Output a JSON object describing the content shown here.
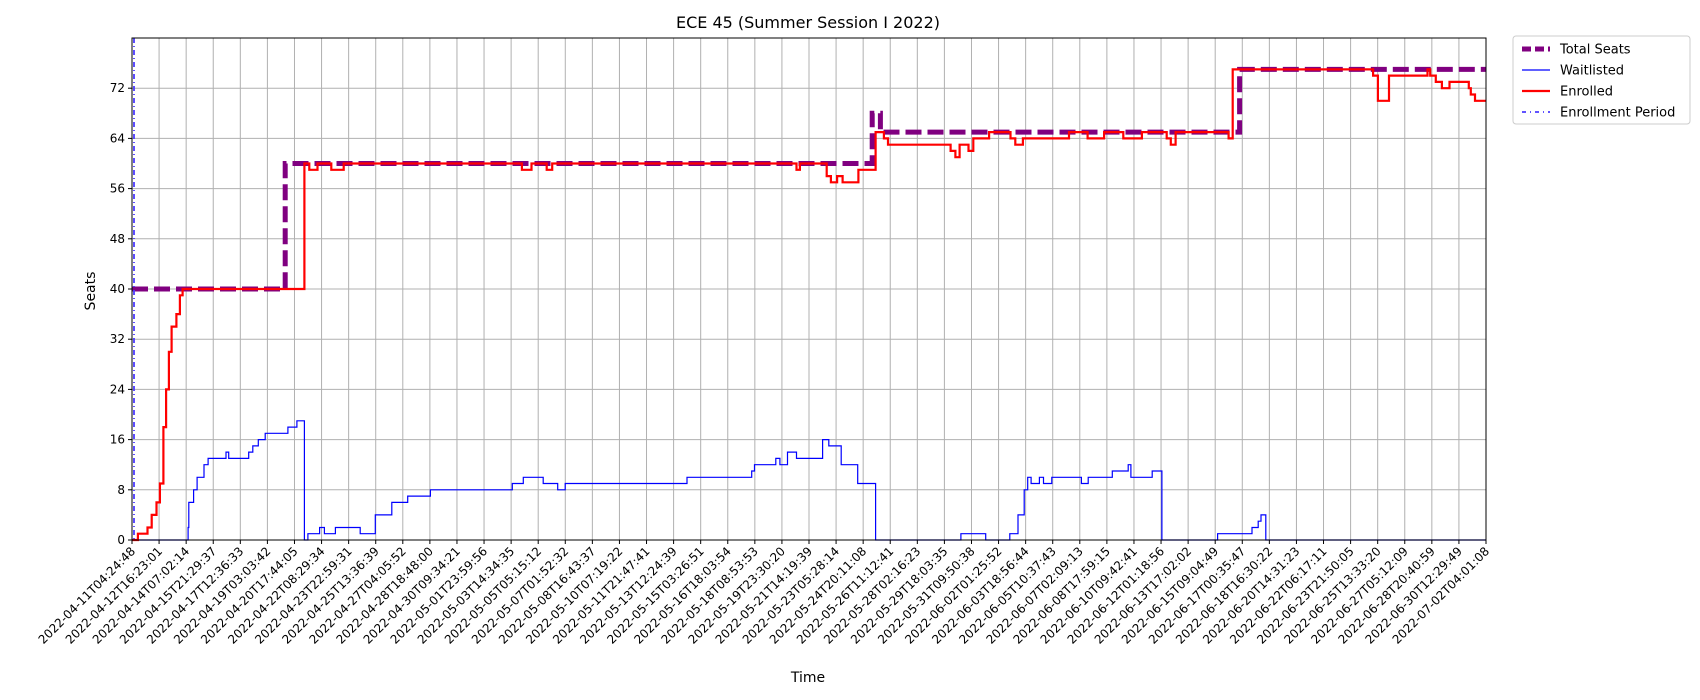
{
  "chart_data": {
    "type": "line",
    "title": "ECE 45 (Summer Session I 2022)",
    "xlabel": "Time",
    "ylabel": "Seats",
    "ylim": [
      0,
      80
    ],
    "xlim": [
      "2022-04-11T04:24:48",
      "2022-07-02T04:01:08"
    ],
    "yticks": [
      0,
      8,
      16,
      24,
      32,
      40,
      48,
      56,
      64,
      72
    ],
    "grid": true,
    "legend_position": "outside-top-right",
    "xtick_labels": [
      "2022-04-11T04:24:48",
      "2022-04-12T16:23:01",
      "2022-04-14T07:02:14",
      "2022-04-15T21:29:37",
      "2022-04-17T12:36:33",
      "2022-04-19T03:03:42",
      "2022-04-20T17:44:05",
      "2022-04-22T08:29:34",
      "2022-04-23T22:59:31",
      "2022-04-25T13:36:39",
      "2022-04-27T04:05:52",
      "2022-04-28T18:48:00",
      "2022-04-30T09:34:21",
      "2022-05-01T23:59:56",
      "2022-05-03T14:34:35",
      "2022-05-05T05:15:12",
      "2022-05-07T01:52:32",
      "2022-05-08T16:43:37",
      "2022-05-10T07:19:22",
      "2022-05-11T21:47:41",
      "2022-05-13T12:24:39",
      "2022-05-15T03:26:51",
      "2022-05-16T18:03:54",
      "2022-05-18T08:53:53",
      "2022-05-19T23:30:20",
      "2022-05-21T14:19:39",
      "2022-05-23T05:28:14",
      "2022-05-24T20:11:08",
      "2022-05-26T11:12:41",
      "2022-05-28T02:16:23",
      "2022-05-29T18:03:35",
      "2022-05-31T09:50:38",
      "2022-06-02T01:25:52",
      "2022-06-03T18:56:44",
      "2022-06-05T10:37:43",
      "2022-06-07T02:09:13",
      "2022-06-08T17:59:15",
      "2022-06-10T09:42:41",
      "2022-06-12T01:18:56",
      "2022-06-13T17:02:02",
      "2022-06-15T09:04:49",
      "2022-06-17T00:35:47",
      "2022-06-18T16:30:22",
      "2022-06-20T14:31:23",
      "2022-06-22T06:17:11",
      "2022-06-23T21:50:05",
      "2022-06-25T13:33:20",
      "2022-06-27T05:12:09",
      "2022-06-28T20:40:59",
      "2022-06-30T12:29:49",
      "2022-07-02T04:01:08"
    ],
    "series": [
      {
        "name": "Total Seats",
        "color": "#800080",
        "style": "dashed-thick",
        "step": true,
        "points": [
          [
            "2022-04-11T04:24:48",
            40
          ],
          [
            "2022-04-20T11:00:00",
            40
          ],
          [
            "2022-04-20T11:00:00",
            60
          ],
          [
            "2022-05-26T00:00:00",
            60
          ],
          [
            "2022-05-26T00:00:00",
            68
          ],
          [
            "2022-05-26T12:00:00",
            68
          ],
          [
            "2022-05-26T12:00:00",
            65
          ],
          [
            "2022-06-17T06:00:00",
            65
          ],
          [
            "2022-06-17T06:00:00",
            75
          ],
          [
            "2022-07-02T04:01:08",
            75
          ]
        ]
      },
      {
        "name": "Waitlisted",
        "color": "#0000ff",
        "style": "solid-thin",
        "step": true,
        "points": [
          [
            "2022-04-11T04:24:48",
            0
          ],
          [
            "2022-04-14T13:00:00",
            0
          ],
          [
            "2022-04-14T14:00:00",
            2
          ],
          [
            "2022-04-14T15:00:00",
            6
          ],
          [
            "2022-04-14T22:00:00",
            8
          ],
          [
            "2022-04-15T03:00:00",
            10
          ],
          [
            "2022-04-15T13:00:00",
            12
          ],
          [
            "2022-04-15T19:00:00",
            13
          ],
          [
            "2022-04-16T21:00:00",
            14
          ],
          [
            "2022-04-17T01:00:00",
            13
          ],
          [
            "2022-04-18T06:00:00",
            14
          ],
          [
            "2022-04-18T12:00:00",
            15
          ],
          [
            "2022-04-18T20:00:00",
            16
          ],
          [
            "2022-04-19T06:00:00",
            17
          ],
          [
            "2022-04-20T15:00:00",
            18
          ],
          [
            "2022-04-21T04:00:00",
            19
          ],
          [
            "2022-04-21T15:00:00",
            0
          ],
          [
            "2022-04-21T20:00:00",
            1
          ],
          [
            "2022-04-22T13:00:00",
            2
          ],
          [
            "2022-04-22T20:00:00",
            1
          ],
          [
            "2022-04-23T12:00:00",
            2
          ],
          [
            "2022-04-25T00:00:00",
            1
          ],
          [
            "2022-04-25T22:00:00",
            4
          ],
          [
            "2022-04-26T22:00:00",
            6
          ],
          [
            "2022-04-27T21:00:00",
            7
          ],
          [
            "2022-04-29T06:00:00",
            8
          ],
          [
            "2022-05-04T05:00:00",
            9
          ],
          [
            "2022-05-04T21:00:00",
            10
          ],
          [
            "2022-05-06T02:00:00",
            9
          ],
          [
            "2022-05-06T23:00:00",
            8
          ],
          [
            "2022-05-07T10:00:00",
            9
          ],
          [
            "2022-05-14T19:00:00",
            10
          ],
          [
            "2022-05-18T17:00:00",
            11
          ],
          [
            "2022-05-18T21:00:00",
            12
          ],
          [
            "2022-05-20T04:00:00",
            13
          ],
          [
            "2022-05-20T10:00:00",
            12
          ],
          [
            "2022-05-20T21:00:00",
            14
          ],
          [
            "2022-05-21T10:00:00",
            13
          ],
          [
            "2022-05-23T00:00:00",
            16
          ],
          [
            "2022-05-23T09:00:00",
            15
          ],
          [
            "2022-05-24T03:00:00",
            12
          ],
          [
            "2022-05-25T03:00:00",
            9
          ],
          [
            "2022-05-26T05:00:00",
            0
          ],
          [
            "2022-05-31T04:00:00",
            0
          ],
          [
            "2022-05-31T09:00:00",
            1
          ],
          [
            "2022-06-01T21:00:00",
            0
          ],
          [
            "2022-06-03T08:00:00",
            1
          ],
          [
            "2022-06-03T20:00:00",
            4
          ],
          [
            "2022-06-04T05:00:00",
            8
          ],
          [
            "2022-06-04T10:00:00",
            10
          ],
          [
            "2022-06-04T15:00:00",
            9
          ],
          [
            "2022-06-05T03:00:00",
            10
          ],
          [
            "2022-06-05T09:00:00",
            9
          ],
          [
            "2022-06-05T21:00:00",
            10
          ],
          [
            "2022-06-07T16:00:00",
            9
          ],
          [
            "2022-06-08T02:00:00",
            10
          ],
          [
            "2022-06-09T13:00:00",
            11
          ],
          [
            "2022-06-10T12:00:00",
            12
          ],
          [
            "2022-06-10T16:00:00",
            10
          ],
          [
            "2022-06-11T23:00:00",
            11
          ],
          [
            "2022-06-12T13:00:00",
            0
          ],
          [
            "2022-06-15T17:00:00",
            0
          ],
          [
            "2022-06-15T22:00:00",
            1
          ],
          [
            "2022-06-18T00:00:00",
            2
          ],
          [
            "2022-06-18T09:00:00",
            3
          ],
          [
            "2022-06-18T13:00:00",
            4
          ],
          [
            "2022-06-18T20:00:00",
            0
          ],
          [
            "2022-07-02T04:01:08",
            0
          ]
        ]
      },
      {
        "name": "Enrolled",
        "color": "#ff0000",
        "style": "solid-medium",
        "step": true,
        "points": [
          [
            "2022-04-11T04:24:48",
            0
          ],
          [
            "2022-04-11T13:00:00",
            1
          ],
          [
            "2022-04-12T03:00:00",
            2
          ],
          [
            "2022-04-12T09:00:00",
            4
          ],
          [
            "2022-04-12T16:00:00",
            6
          ],
          [
            "2022-04-12T21:00:00",
            9
          ],
          [
            "2022-04-13T02:00:00",
            18
          ],
          [
            "2022-04-13T06:00:00",
            24
          ],
          [
            "2022-04-13T10:00:00",
            30
          ],
          [
            "2022-04-13T14:00:00",
            34
          ],
          [
            "2022-04-13T21:00:00",
            36
          ],
          [
            "2022-04-14T02:00:00",
            39
          ],
          [
            "2022-04-14T06:00:00",
            40
          ],
          [
            "2022-04-21T15:00:00",
            60
          ],
          [
            "2022-04-21T22:00:00",
            59
          ],
          [
            "2022-04-22T10:00:00",
            60
          ],
          [
            "2022-04-23T06:00:00",
            59
          ],
          [
            "2022-04-24T00:00:00",
            60
          ],
          [
            "2022-05-04T19:00:00",
            59
          ],
          [
            "2022-05-05T09:00:00",
            60
          ],
          [
            "2022-05-06T07:00:00",
            59
          ],
          [
            "2022-05-06T15:00:00",
            60
          ],
          [
            "2022-05-21T10:00:00",
            59
          ],
          [
            "2022-05-21T15:00:00",
            60
          ],
          [
            "2022-05-23T06:00:00",
            58
          ],
          [
            "2022-05-23T12:00:00",
            57
          ],
          [
            "2022-05-23T21:00:00",
            58
          ],
          [
            "2022-05-24T05:00:00",
            57
          ],
          [
            "2022-05-25T04:00:00",
            59
          ],
          [
            "2022-05-26T05:00:00",
            65
          ],
          [
            "2022-05-26T17:00:00",
            64
          ],
          [
            "2022-05-26T23:00:00",
            63
          ],
          [
            "2022-05-30T18:00:00",
            62
          ],
          [
            "2022-05-31T01:00:00",
            61
          ],
          [
            "2022-05-31T07:00:00",
            63
          ],
          [
            "2022-05-31T20:00:00",
            62
          ],
          [
            "2022-06-01T03:00:00",
            64
          ],
          [
            "2022-06-02T02:00:00",
            65
          ],
          [
            "2022-06-03T09:00:00",
            64
          ],
          [
            "2022-06-03T16:00:00",
            63
          ],
          [
            "2022-06-04T03:00:00",
            64
          ],
          [
            "2022-06-06T22:00:00",
            65
          ],
          [
            "2022-06-08T01:00:00",
            64
          ],
          [
            "2022-06-09T01:00:00",
            65
          ],
          [
            "2022-06-10T05:00:00",
            64
          ],
          [
            "2022-06-11T08:00:00",
            65
          ],
          [
            "2022-06-12T20:00:00",
            64
          ],
          [
            "2022-06-13T02:00:00",
            63
          ],
          [
            "2022-06-13T09:00:00",
            65
          ],
          [
            "2022-06-16T14:00:00",
            64
          ],
          [
            "2022-06-16T20:00:00",
            75
          ],
          [
            "2022-06-25T08:00:00",
            74
          ],
          [
            "2022-06-25T15:00:00",
            70
          ],
          [
            "2022-06-26T07:00:00",
            74
          ],
          [
            "2022-06-28T15:00:00",
            75
          ],
          [
            "2022-06-28T19:00:00",
            74
          ],
          [
            "2022-06-29T03:00:00",
            73
          ],
          [
            "2022-06-29T12:00:00",
            72
          ],
          [
            "2022-06-29T23:00:00",
            73
          ],
          [
            "2022-07-01T03:00:00",
            72
          ],
          [
            "2022-07-01T06:00:00",
            71
          ],
          [
            "2022-07-01T12:00:00",
            70
          ],
          [
            "2022-07-02T04:01:08",
            70
          ]
        ]
      },
      {
        "name": "Enrollment Period",
        "color": "#4b3bff",
        "style": "dashdot-vertical",
        "vline_x": "2022-04-11T04:24:48"
      }
    ]
  }
}
